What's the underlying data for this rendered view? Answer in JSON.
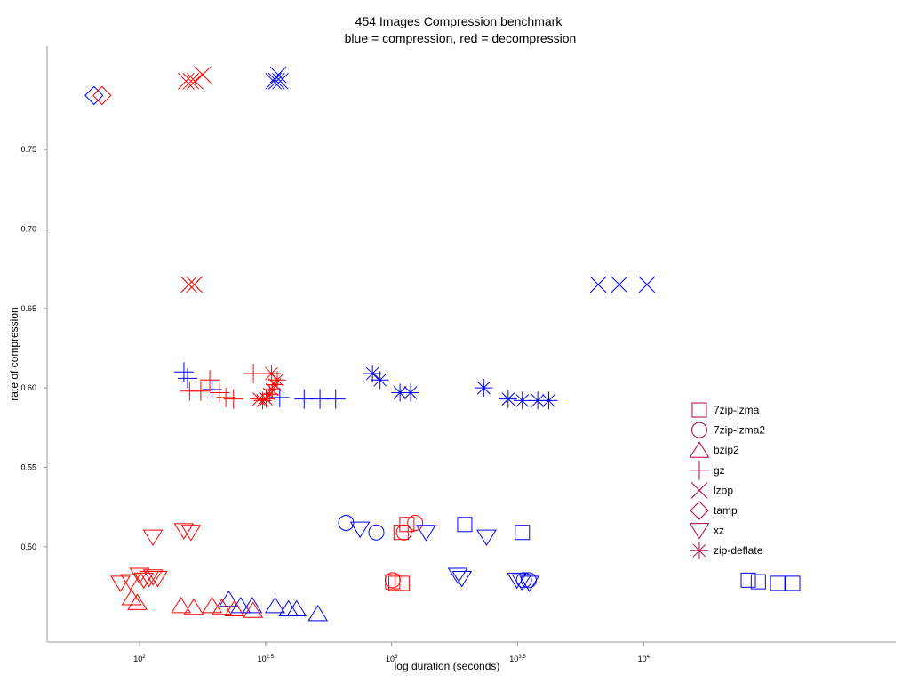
{
  "chart_data": {
    "type": "scatter",
    "title": "454 Images Compression benchmark",
    "subtitle": "blue = compression, red = decompression",
    "xlabel": "log duration (seconds)",
    "ylabel": "rate of compression",
    "xscale": "log10",
    "xlim": [
      43,
      100000
    ],
    "ylim": [
      0.44,
      0.815
    ],
    "yticks": [
      "0.50",
      "0.55",
      "0.60",
      "0.65",
      "0.70",
      "0.75"
    ],
    "xticks": [
      {
        "base": "10",
        "exp": "2",
        "value": 100
      },
      {
        "base": "10",
        "exp": "2.5",
        "value": 316.23
      },
      {
        "base": "10",
        "exp": "3",
        "value": 1000
      },
      {
        "base": "10",
        "exp": "3.5",
        "value": 3162.3
      },
      {
        "base": "10",
        "exp": "4",
        "value": 10000
      }
    ],
    "legend_position": "right",
    "grid": false,
    "colors": {
      "compression": "#0000ff",
      "decompression": "#ff0000",
      "legend": "#b0004a"
    },
    "series": [
      {
        "name": "7zip-lzma",
        "marker": "square",
        "points": [
          {
            "x": 1950,
            "y": 0.514,
            "c": "compression"
          },
          {
            "x": 3300,
            "y": 0.509,
            "c": "compression"
          },
          {
            "x": 26000,
            "y": 0.479,
            "c": "compression"
          },
          {
            "x": 28500,
            "y": 0.478,
            "c": "compression"
          },
          {
            "x": 34000,
            "y": 0.477,
            "c": "compression"
          },
          {
            "x": 39000,
            "y": 0.477,
            "c": "compression"
          },
          {
            "x": 1010,
            "y": 0.478,
            "c": "decompression"
          },
          {
            "x": 1040,
            "y": 0.477,
            "c": "decompression"
          },
          {
            "x": 1100,
            "y": 0.477,
            "c": "decompression"
          },
          {
            "x": 1090,
            "y": 0.509,
            "c": "decompression"
          },
          {
            "x": 1150,
            "y": 0.514,
            "c": "decompression"
          }
        ]
      },
      {
        "name": "7zip-lzma2",
        "marker": "circle",
        "points": [
          {
            "x": 660,
            "y": 0.515,
            "c": "compression"
          },
          {
            "x": 870,
            "y": 0.509,
            "c": "compression"
          },
          {
            "x": 3350,
            "y": 0.479,
            "c": "compression"
          },
          {
            "x": 3500,
            "y": 0.479,
            "c": "compression"
          },
          {
            "x": 1010,
            "y": 0.479,
            "c": "decompression"
          },
          {
            "x": 1120,
            "y": 0.509,
            "c": "decompression"
          },
          {
            "x": 1240,
            "y": 0.515,
            "c": "decompression"
          }
        ]
      },
      {
        "name": "bzip2",
        "marker": "triangle-up",
        "points": [
          {
            "x": 226,
            "y": 0.467,
            "c": "compression"
          },
          {
            "x": 252,
            "y": 0.463,
            "c": "compression"
          },
          {
            "x": 280,
            "y": 0.463,
            "c": "compression"
          },
          {
            "x": 345,
            "y": 0.463,
            "c": "compression"
          },
          {
            "x": 390,
            "y": 0.461,
            "c": "compression"
          },
          {
            "x": 420,
            "y": 0.461,
            "c": "compression"
          },
          {
            "x": 510,
            "y": 0.458,
            "c": "compression"
          },
          {
            "x": 93,
            "y": 0.468,
            "c": "decompression"
          },
          {
            "x": 98,
            "y": 0.465,
            "c": "decompression"
          },
          {
            "x": 146,
            "y": 0.463,
            "c": "decompression"
          },
          {
            "x": 164,
            "y": 0.462,
            "c": "decompression"
          },
          {
            "x": 194,
            "y": 0.463,
            "c": "decompression"
          },
          {
            "x": 212,
            "y": 0.462,
            "c": "decompression"
          },
          {
            "x": 238,
            "y": 0.461,
            "c": "decompression"
          },
          {
            "x": 282,
            "y": 0.46,
            "c": "decompression"
          }
        ]
      },
      {
        "name": "gz",
        "marker": "plus",
        "points": [
          {
            "x": 360,
            "y": 0.594,
            "c": "compression"
          },
          {
            "x": 450,
            "y": 0.593,
            "c": "compression"
          },
          {
            "x": 520,
            "y": 0.593,
            "c": "compression"
          },
          {
            "x": 600,
            "y": 0.593,
            "c": "compression"
          },
          {
            "x": 150,
            "y": 0.61,
            "c": "compression"
          },
          {
            "x": 155,
            "y": 0.606,
            "c": "compression"
          },
          {
            "x": 194,
            "y": 0.599,
            "c": "compression"
          },
          {
            "x": 158,
            "y": 0.598,
            "c": "decompression"
          },
          {
            "x": 175,
            "y": 0.598,
            "c": "decompression"
          },
          {
            "x": 190,
            "y": 0.605,
            "c": "decompression"
          },
          {
            "x": 208,
            "y": 0.597,
            "c": "decompression"
          },
          {
            "x": 220,
            "y": 0.594,
            "c": "decompression"
          },
          {
            "x": 236,
            "y": 0.593,
            "c": "decompression"
          },
          {
            "x": 283,
            "y": 0.609,
            "c": "decompression"
          }
        ]
      },
      {
        "name": "lzop",
        "marker": "x",
        "points": [
          {
            "x": 340,
            "y": 0.793,
            "c": "compression"
          },
          {
            "x": 350,
            "y": 0.793,
            "c": "compression"
          },
          {
            "x": 355,
            "y": 0.797,
            "c": "compression"
          },
          {
            "x": 362,
            "y": 0.793,
            "c": "compression"
          },
          {
            "x": 6600,
            "y": 0.665,
            "c": "compression"
          },
          {
            "x": 8000,
            "y": 0.665,
            "c": "compression"
          },
          {
            "x": 10300,
            "y": 0.665,
            "c": "compression"
          },
          {
            "x": 153,
            "y": 0.793,
            "c": "decompression"
          },
          {
            "x": 160,
            "y": 0.793,
            "c": "decompression"
          },
          {
            "x": 166,
            "y": 0.793,
            "c": "decompression"
          },
          {
            "x": 178,
            "y": 0.797,
            "c": "decompression"
          },
          {
            "x": 157,
            "y": 0.665,
            "c": "decompression"
          },
          {
            "x": 165,
            "y": 0.665,
            "c": "decompression"
          }
        ]
      },
      {
        "name": "tamp",
        "marker": "diamond",
        "points": [
          {
            "x": 66,
            "y": 0.784,
            "c": "compression"
          },
          {
            "x": 71,
            "y": 0.784,
            "c": "decompression"
          }
        ]
      },
      {
        "name": "xz",
        "marker": "triangle-down",
        "points": [
          {
            "x": 750,
            "y": 0.511,
            "c": "compression"
          },
          {
            "x": 1370,
            "y": 0.509,
            "c": "compression"
          },
          {
            "x": 2380,
            "y": 0.506,
            "c": "compression"
          },
          {
            "x": 1830,
            "y": 0.482,
            "c": "compression"
          },
          {
            "x": 1900,
            "y": 0.48,
            "c": "compression"
          },
          {
            "x": 3140,
            "y": 0.479,
            "c": "compression"
          },
          {
            "x": 3280,
            "y": 0.478,
            "c": "compression"
          },
          {
            "x": 3520,
            "y": 0.477,
            "c": "compression"
          },
          {
            "x": 113,
            "y": 0.506,
            "c": "decompression"
          },
          {
            "x": 150,
            "y": 0.51,
            "c": "decompression"
          },
          {
            "x": 160,
            "y": 0.509,
            "c": "decompression"
          },
          {
            "x": 84,
            "y": 0.477,
            "c": "decompression"
          },
          {
            "x": 92,
            "y": 0.478,
            "c": "decompression"
          },
          {
            "x": 100,
            "y": 0.482,
            "c": "decompression"
          },
          {
            "x": 104,
            "y": 0.479,
            "c": "decompression"
          },
          {
            "x": 109,
            "y": 0.48,
            "c": "decompression"
          },
          {
            "x": 113,
            "y": 0.481,
            "c": "decompression"
          },
          {
            "x": 118,
            "y": 0.48,
            "c": "decompression"
          }
        ]
      },
      {
        "name": "zip-deflate",
        "marker": "asterisk",
        "points": [
          {
            "x": 840,
            "y": 0.609,
            "c": "compression"
          },
          {
            "x": 900,
            "y": 0.605,
            "c": "compression"
          },
          {
            "x": 1080,
            "y": 0.597,
            "c": "compression"
          },
          {
            "x": 1190,
            "y": 0.597,
            "c": "compression"
          },
          {
            "x": 2320,
            "y": 0.6,
            "c": "compression"
          },
          {
            "x": 2900,
            "y": 0.593,
            "c": "compression"
          },
          {
            "x": 3300,
            "y": 0.592,
            "c": "compression"
          },
          {
            "x": 3800,
            "y": 0.592,
            "c": "compression"
          },
          {
            "x": 4200,
            "y": 0.592,
            "c": "compression"
          },
          {
            "x": 298,
            "y": 0.593,
            "c": "decompression"
          },
          {
            "x": 308,
            "y": 0.592,
            "c": "decompression"
          },
          {
            "x": 318,
            "y": 0.593,
            "c": "decompression"
          },
          {
            "x": 328,
            "y": 0.596,
            "c": "decompression"
          },
          {
            "x": 336,
            "y": 0.599,
            "c": "decompression"
          },
          {
            "x": 344,
            "y": 0.602,
            "c": "decompression"
          },
          {
            "x": 352,
            "y": 0.605,
            "c": "decompression"
          },
          {
            "x": 334,
            "y": 0.609,
            "c": "decompression"
          }
        ]
      }
    ]
  }
}
